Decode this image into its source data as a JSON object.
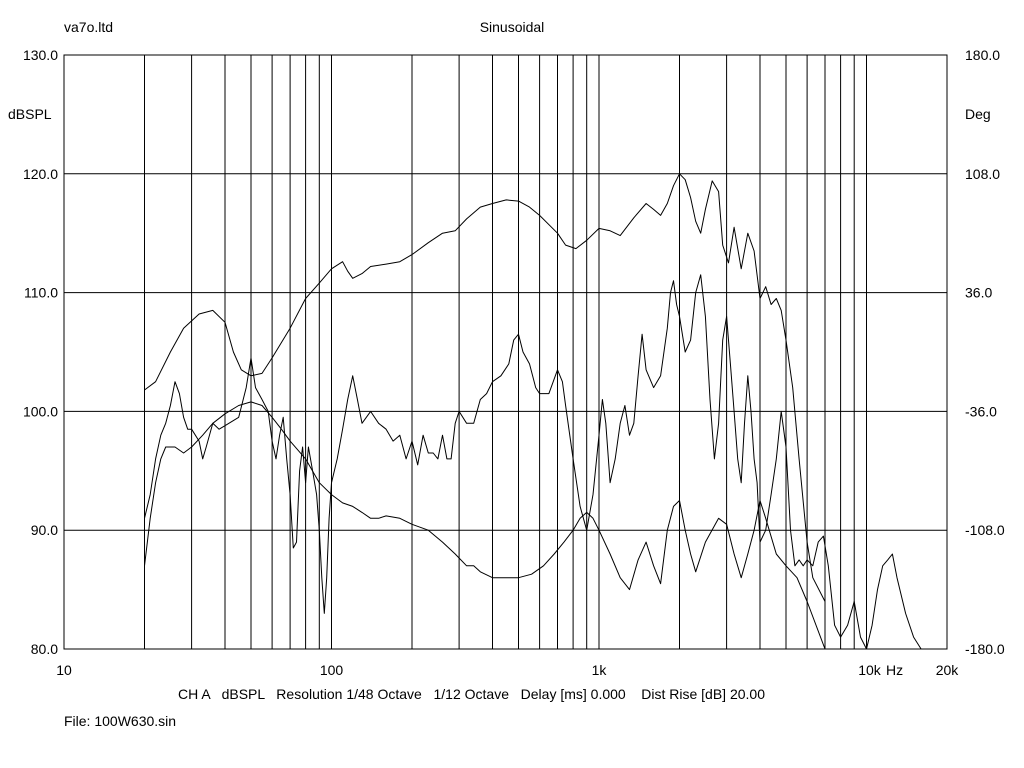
{
  "header": {
    "left": "va7o.ltd",
    "center": "Sinusoidal"
  },
  "footer": {
    "settings": "CH A   dBSPL   Resolution 1/48 Octave   1/12 Octave   Delay [ms] 0.000    Dist Rise [dB] 20.00",
    "file": "File: 100W630.sin"
  },
  "chart_data": {
    "type": "line",
    "x_scale": "log",
    "xlim": [
      10,
      20000
    ],
    "ylim": [
      80,
      130
    ],
    "y2lim": [
      -180,
      180
    ],
    "grid": true,
    "ylabel": "dBSPL",
    "y2label": "Deg",
    "x_unit_label": "Hz",
    "x_tick_labels": [
      "10",
      "100",
      "1k",
      "10k",
      "20k"
    ],
    "y_tick_labels": [
      "130.0",
      "120.0",
      "110.0",
      "100.0",
      "90.0",
      "80.0"
    ],
    "y2_tick_labels": [
      "180.0",
      "108.0",
      "36.0",
      "-36.0",
      "-108.0",
      "-180.0"
    ],
    "x_gridlines": [
      20,
      30,
      40,
      50,
      60,
      70,
      80,
      90,
      100,
      200,
      300,
      400,
      500,
      600,
      700,
      800,
      900,
      1000,
      2000,
      3000,
      4000,
      5000,
      6000,
      7000,
      8000,
      9000,
      10000,
      20000
    ],
    "series": [
      {
        "values": [
          [
            20,
            101.8
          ],
          [
            22,
            102.5
          ],
          [
            25,
            105
          ],
          [
            28,
            107
          ],
          [
            32,
            108.2
          ],
          [
            36,
            108.5
          ],
          [
            40,
            107.5
          ],
          [
            43,
            105
          ],
          [
            46,
            103.5
          ],
          [
            50,
            103
          ],
          [
            55,
            103.2
          ],
          [
            60,
            104.5
          ],
          [
            70,
            107
          ],
          [
            80,
            109.5
          ],
          [
            90,
            110.8
          ],
          [
            100,
            112
          ],
          [
            110,
            112.6
          ],
          [
            115,
            111.8
          ],
          [
            120,
            111.2
          ],
          [
            130,
            111.6
          ],
          [
            140,
            112.2
          ],
          [
            160,
            112.4
          ],
          [
            180,
            112.6
          ],
          [
            200,
            113.2
          ],
          [
            230,
            114.2
          ],
          [
            260,
            115
          ],
          [
            290,
            115.2
          ],
          [
            320,
            116.2
          ],
          [
            360,
            117.2
          ],
          [
            400,
            117.5
          ],
          [
            450,
            117.8
          ],
          [
            500,
            117.7
          ],
          [
            550,
            117.2
          ],
          [
            600,
            116.5
          ],
          [
            700,
            115
          ],
          [
            750,
            114
          ],
          [
            820,
            113.7
          ],
          [
            900,
            114.4
          ],
          [
            1000,
            115.4
          ],
          [
            1100,
            115.2
          ],
          [
            1200,
            114.8
          ],
          [
            1350,
            116.3
          ],
          [
            1500,
            117.5
          ],
          [
            1600,
            117
          ],
          [
            1700,
            116.5
          ],
          [
            1800,
            117.5
          ],
          [
            1900,
            119
          ],
          [
            2000,
            120
          ],
          [
            2100,
            119.5
          ],
          [
            2200,
            118
          ],
          [
            2300,
            116
          ],
          [
            2400,
            115
          ],
          [
            2500,
            117
          ],
          [
            2650,
            119.4
          ],
          [
            2800,
            118.5
          ],
          [
            2900,
            114
          ],
          [
            3050,
            112.5
          ],
          [
            3200,
            115.5
          ],
          [
            3400,
            112
          ],
          [
            3600,
            115
          ],
          [
            3800,
            113.5
          ],
          [
            4000,
            109.5
          ],
          [
            4200,
            110.5
          ],
          [
            4400,
            109
          ],
          [
            4600,
            109.5
          ],
          [
            4800,
            108.5
          ],
          [
            5000,
            106
          ],
          [
            5300,
            102
          ],
          [
            5600,
            96
          ],
          [
            6000,
            89
          ],
          [
            6300,
            86
          ],
          [
            7000,
            84
          ]
        ]
      },
      {
        "values": [
          [
            20,
            87
          ],
          [
            21,
            91
          ],
          [
            22,
            94
          ],
          [
            23,
            96
          ],
          [
            24,
            97
          ],
          [
            26,
            97
          ],
          [
            28,
            96.5
          ],
          [
            30,
            97
          ],
          [
            33,
            98
          ],
          [
            36,
            99
          ],
          [
            40,
            99.8
          ],
          [
            45,
            100.5
          ],
          [
            50,
            100.8
          ],
          [
            55,
            100.5
          ],
          [
            60,
            99.5
          ],
          [
            65,
            98.5
          ],
          [
            70,
            97.5
          ],
          [
            80,
            96
          ],
          [
            90,
            94
          ],
          [
            100,
            93
          ],
          [
            110,
            92.3
          ],
          [
            120,
            92
          ],
          [
            130,
            91.5
          ],
          [
            140,
            91
          ],
          [
            150,
            91
          ],
          [
            160,
            91.2
          ],
          [
            180,
            91
          ],
          [
            200,
            90.5
          ],
          [
            230,
            90
          ],
          [
            260,
            89
          ],
          [
            290,
            88
          ],
          [
            320,
            87
          ],
          [
            340,
            87
          ],
          [
            360,
            86.5
          ],
          [
            400,
            86
          ],
          [
            450,
            86
          ],
          [
            500,
            86
          ],
          [
            560,
            86.3
          ],
          [
            620,
            87
          ],
          [
            680,
            88
          ],
          [
            740,
            89
          ],
          [
            800,
            90
          ],
          [
            850,
            91
          ],
          [
            900,
            91.5
          ],
          [
            950,
            91
          ],
          [
            1000,
            90
          ],
          [
            1100,
            88
          ],
          [
            1200,
            86
          ],
          [
            1300,
            85
          ],
          [
            1400,
            87.5
          ],
          [
            1500,
            89
          ],
          [
            1600,
            87
          ],
          [
            1700,
            85.5
          ],
          [
            1800,
            90
          ],
          [
            1900,
            92
          ],
          [
            2000,
            92.5
          ],
          [
            2100,
            90
          ],
          [
            2200,
            88
          ],
          [
            2300,
            86.5
          ],
          [
            2500,
            89
          ],
          [
            2800,
            91
          ],
          [
            3000,
            90.5
          ],
          [
            3200,
            88
          ],
          [
            3400,
            86
          ],
          [
            3600,
            88
          ],
          [
            3800,
            90
          ],
          [
            4000,
            92.5
          ],
          [
            4200,
            91
          ],
          [
            4600,
            88
          ],
          [
            5000,
            87
          ],
          [
            5500,
            86
          ],
          [
            6000,
            84
          ],
          [
            7000,
            80
          ]
        ]
      },
      {
        "values": [
          [
            20,
            91
          ],
          [
            21,
            93
          ],
          [
            22,
            96
          ],
          [
            23,
            98
          ],
          [
            24,
            99
          ],
          [
            25,
            100.5
          ],
          [
            26,
            102.5
          ],
          [
            27,
            101.5
          ],
          [
            28,
            99.5
          ],
          [
            29,
            98.5
          ],
          [
            30,
            98.5
          ],
          [
            32,
            97.5
          ],
          [
            33,
            96
          ],
          [
            34,
            97
          ],
          [
            36,
            99
          ],
          [
            38,
            98.5
          ],
          [
            40,
            98.8
          ],
          [
            45,
            99.5
          ],
          [
            48,
            102
          ],
          [
            50,
            104.5
          ],
          [
            52,
            102
          ],
          [
            55,
            101
          ],
          [
            58,
            100
          ],
          [
            60,
            97.5
          ],
          [
            62,
            96
          ],
          [
            64,
            98
          ],
          [
            66,
            99.5
          ],
          [
            68,
            96
          ],
          [
            70,
            93
          ],
          [
            72,
            88.5
          ],
          [
            74,
            89
          ],
          [
            76,
            95
          ],
          [
            78,
            97
          ],
          [
            80,
            94
          ],
          [
            82,
            97
          ],
          [
            85,
            95
          ],
          [
            88,
            93
          ],
          [
            90,
            90
          ],
          [
            92,
            86
          ],
          [
            94,
            83
          ],
          [
            96,
            86
          ],
          [
            98,
            91
          ],
          [
            100,
            94
          ],
          [
            105,
            96
          ],
          [
            110,
            98.5
          ],
          [
            115,
            101
          ],
          [
            120,
            103
          ],
          [
            125,
            101
          ],
          [
            130,
            99
          ],
          [
            140,
            100
          ],
          [
            150,
            99
          ],
          [
            160,
            98.5
          ],
          [
            170,
            97.5
          ],
          [
            180,
            98
          ],
          [
            190,
            96
          ],
          [
            200,
            97.5
          ],
          [
            210,
            95.5
          ],
          [
            220,
            98
          ],
          [
            230,
            96.5
          ],
          [
            240,
            96.5
          ],
          [
            250,
            96
          ],
          [
            260,
            98
          ],
          [
            270,
            96
          ],
          [
            280,
            96
          ],
          [
            290,
            99
          ],
          [
            300,
            100
          ],
          [
            320,
            99
          ],
          [
            340,
            99
          ],
          [
            360,
            101
          ],
          [
            380,
            101.5
          ],
          [
            400,
            102.5
          ],
          [
            430,
            103
          ],
          [
            460,
            104
          ],
          [
            480,
            106
          ],
          [
            500,
            106.5
          ],
          [
            520,
            105
          ],
          [
            550,
            104
          ],
          [
            580,
            102
          ],
          [
            600,
            101.5
          ],
          [
            650,
            101.5
          ],
          [
            700,
            103.5
          ],
          [
            730,
            102.5
          ],
          [
            750,
            100.5
          ],
          [
            800,
            96
          ],
          [
            850,
            92
          ],
          [
            900,
            90
          ],
          [
            950,
            93
          ],
          [
            1000,
            98
          ],
          [
            1030,
            101
          ],
          [
            1060,
            99
          ],
          [
            1100,
            94
          ],
          [
            1150,
            96
          ],
          [
            1200,
            99
          ],
          [
            1250,
            100.5
          ],
          [
            1300,
            98
          ],
          [
            1350,
            99
          ],
          [
            1400,
            103
          ],
          [
            1450,
            106.5
          ],
          [
            1500,
            103.5
          ],
          [
            1600,
            102
          ],
          [
            1700,
            103
          ],
          [
            1800,
            107
          ],
          [
            1850,
            110
          ],
          [
            1900,
            111
          ],
          [
            1950,
            109
          ],
          [
            2000,
            108
          ],
          [
            2100,
            105
          ],
          [
            2200,
            106
          ],
          [
            2300,
            110
          ],
          [
            2400,
            111.5
          ],
          [
            2500,
            108
          ],
          [
            2600,
            101
          ],
          [
            2700,
            96
          ],
          [
            2800,
            99
          ],
          [
            2900,
            106
          ],
          [
            3000,
            108
          ],
          [
            3100,
            104
          ],
          [
            3200,
            100
          ],
          [
            3300,
            96
          ],
          [
            3400,
            94
          ],
          [
            3500,
            99
          ],
          [
            3600,
            103
          ],
          [
            3700,
            100
          ],
          [
            3800,
            96
          ],
          [
            3900,
            94
          ],
          [
            4000,
            89
          ],
          [
            4200,
            90
          ],
          [
            4400,
            93
          ],
          [
            4600,
            96
          ],
          [
            4800,
            100
          ],
          [
            5000,
            97
          ],
          [
            5200,
            90
          ],
          [
            5400,
            87
          ],
          [
            5600,
            87.5
          ],
          [
            5800,
            87
          ],
          [
            6000,
            87.5
          ],
          [
            6300,
            87
          ],
          [
            6600,
            89
          ],
          [
            6900,
            89.5
          ],
          [
            7200,
            87
          ],
          [
            7600,
            82
          ],
          [
            8000,
            81
          ],
          [
            8500,
            82
          ],
          [
            9000,
            84
          ],
          [
            9500,
            81
          ],
          [
            10000,
            80
          ],
          [
            10500,
            82
          ],
          [
            11000,
            85
          ],
          [
            11500,
            87
          ],
          [
            12000,
            87.5
          ],
          [
            12500,
            88
          ],
          [
            13000,
            86
          ],
          [
            14000,
            83
          ],
          [
            15000,
            81
          ],
          [
            16000,
            80
          ]
        ]
      }
    ]
  }
}
